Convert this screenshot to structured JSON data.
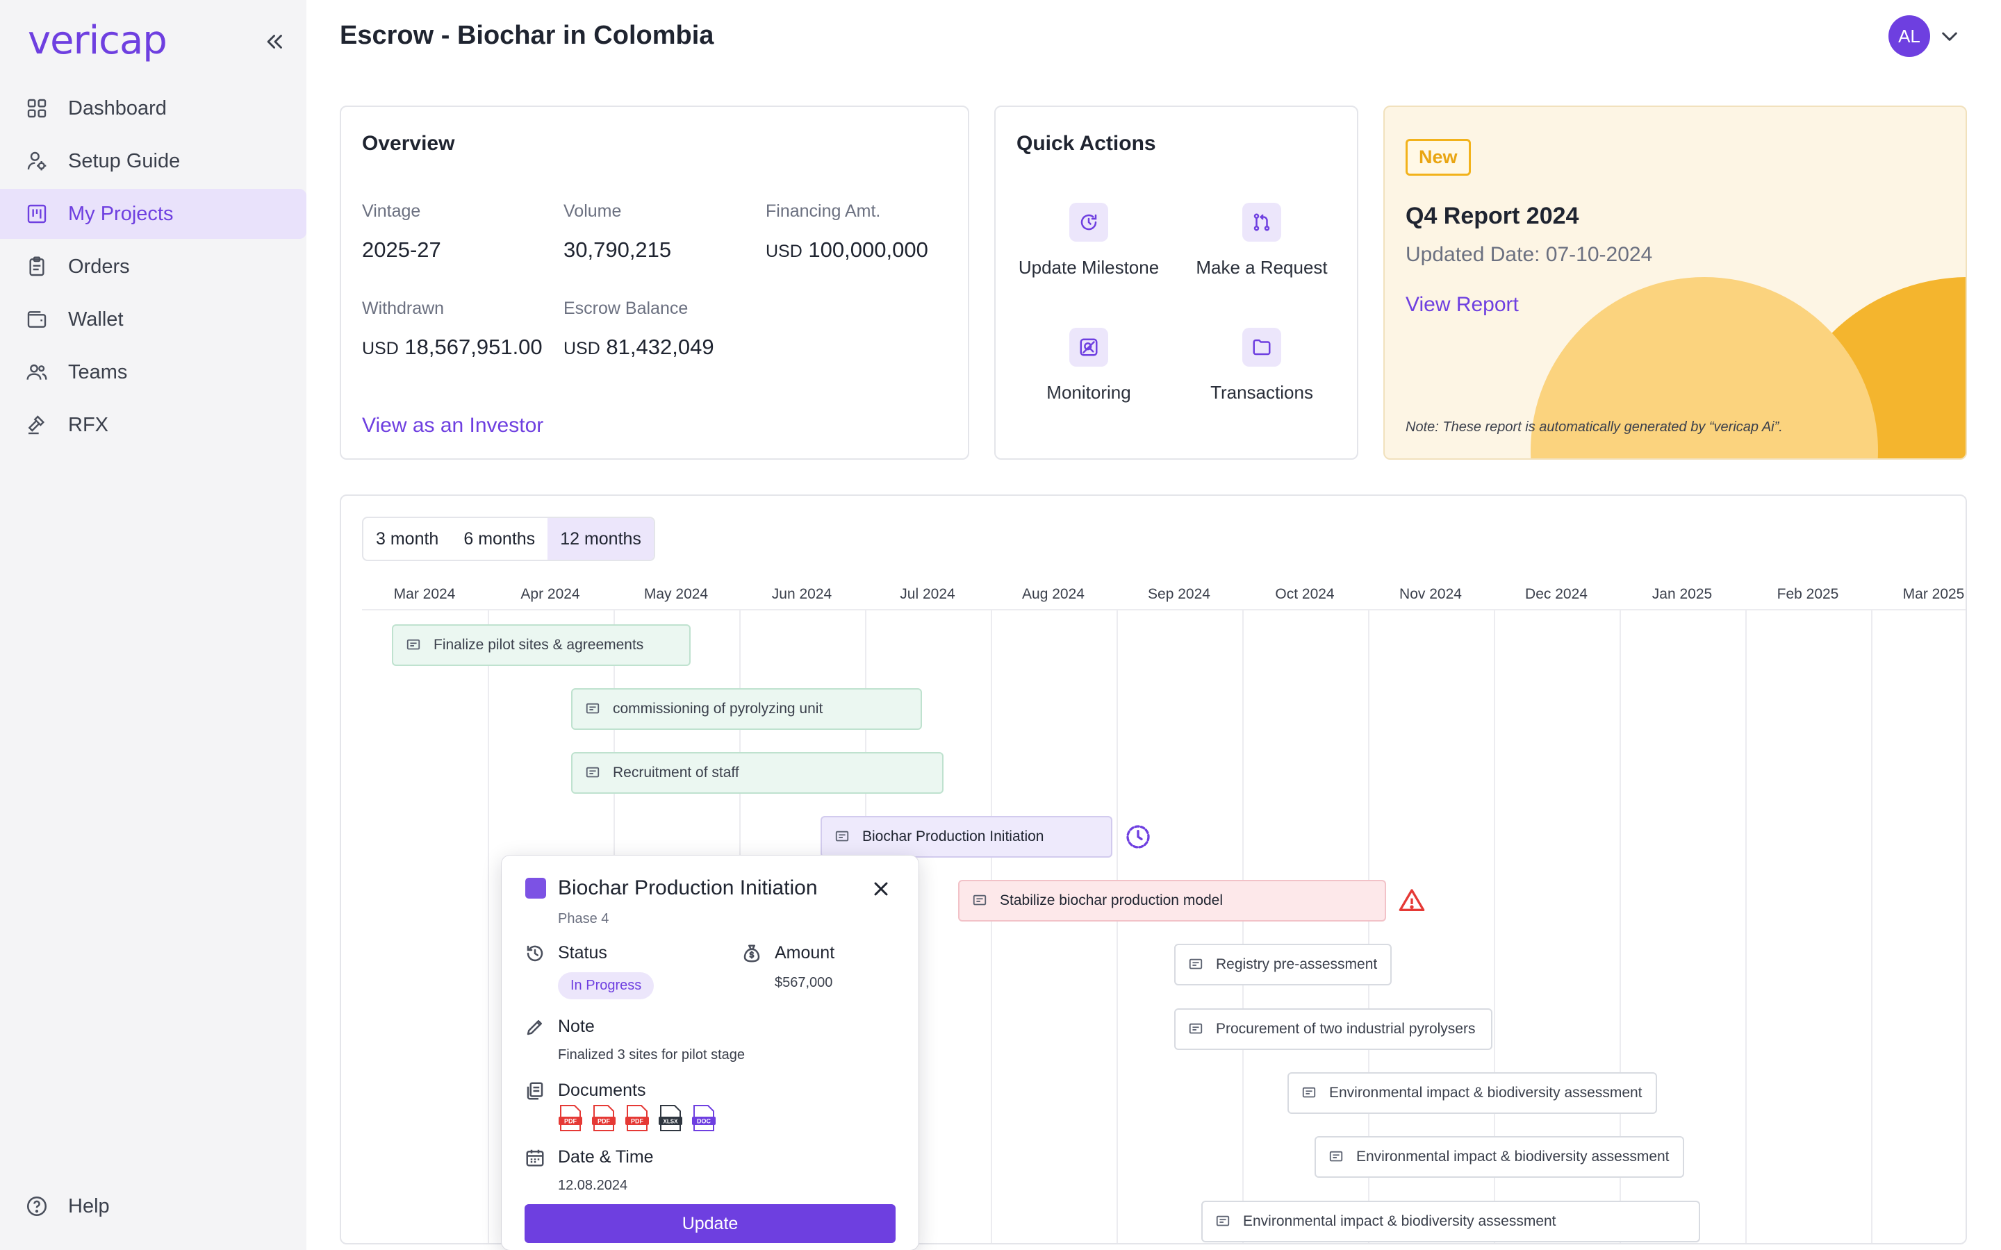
{
  "app": {
    "logo": "vericap"
  },
  "sidebar": {
    "items": [
      {
        "label": "Dashboard",
        "icon": "dashboard-icon"
      },
      {
        "label": "Setup Guide",
        "icon": "setup-guide-icon"
      },
      {
        "label": "My Projects",
        "icon": "projects-icon",
        "active": true
      },
      {
        "label": "Orders",
        "icon": "orders-icon"
      },
      {
        "label": "Wallet",
        "icon": "wallet-icon"
      },
      {
        "label": "Teams",
        "icon": "teams-icon"
      },
      {
        "label": "RFX",
        "icon": "gavel-icon"
      }
    ],
    "help_label": "Help"
  },
  "header": {
    "title": "Escrow - Biochar in Colombia",
    "avatar_initials": "AL"
  },
  "overview": {
    "title": "Overview",
    "vintage_label": "Vintage",
    "vintage_value": "2025-27",
    "volume_label": "Volume",
    "volume_value": "30,790,215",
    "financing_label": "Financing Amt.",
    "financing_currency": "USD",
    "financing_value": "100,000,000",
    "withdrawn_label": "Withdrawn",
    "withdrawn_currency": "USD",
    "withdrawn_value": "18,567,951.00",
    "escrow_label": "Escrow Balance",
    "escrow_currency": "USD",
    "escrow_value": "81,432,049",
    "investor_link": "View as an Investor"
  },
  "quick_actions": {
    "title": "Quick Actions",
    "items": [
      {
        "label": "Update Milestone",
        "icon": "milestone-icon"
      },
      {
        "label": "Make a Request",
        "icon": "request-icon"
      },
      {
        "label": "Monitoring",
        "icon": "monitoring-icon"
      },
      {
        "label": "Transactions",
        "icon": "folder-icon"
      }
    ]
  },
  "report": {
    "badge": "New",
    "title": "Q4 Report 2024",
    "updated": "Updated Date: 07-10-2024",
    "link": "View Report",
    "note": "Note: These report is automatically generated by “vericap Ai”."
  },
  "timeline": {
    "ranges": [
      "3 month",
      "6 months",
      "12 months"
    ],
    "active_range": "12 months",
    "months": [
      "Mar 2024",
      "Apr 2024",
      "May 2024",
      "Jun 2024",
      "Jul 2024",
      "Aug 2024",
      "Sep 2024",
      "Oct 2024",
      "Nov 2024",
      "Dec 2024",
      "Jan 2025",
      "Feb 2025",
      "Mar 2025"
    ],
    "tasks": [
      {
        "label": "Finalize pilot sites & agreements",
        "style": "green"
      },
      {
        "label": "commissioning of pyrolyzing unit",
        "style": "green"
      },
      {
        "label": "Recruitment of staff",
        "style": "green"
      },
      {
        "label": "Biochar Production Initiation",
        "style": "purple",
        "status_icon": "clock-icon"
      },
      {
        "label": "Stabilize biochar production model",
        "style": "red",
        "status_icon": "warning-icon"
      },
      {
        "label": "Registry pre-assessment",
        "style": "plain"
      },
      {
        "label": "Procurement of two industrial pyrolysers",
        "style": "plain"
      },
      {
        "label": "Environmental impact & biodiversity assessment",
        "style": "plain"
      },
      {
        "label": "Environmental impact & biodiversity assessment",
        "style": "plain"
      },
      {
        "label": "Environmental impact & biodiversity assessment",
        "style": "plain"
      }
    ]
  },
  "popup": {
    "title": "Biochar Production Initiation",
    "phase": "Phase 4",
    "status_label": "Status",
    "status_value": "In Progress",
    "amount_label": "Amount",
    "amount_value": "$567,000",
    "note_label": "Note",
    "note_value": "Finalized 3 sites for pilot stage",
    "documents_label": "Documents",
    "documents": [
      {
        "type": "PDF",
        "color": "#e53935"
      },
      {
        "type": "PDF",
        "color": "#e53935"
      },
      {
        "type": "PDF",
        "color": "#e53935"
      },
      {
        "type": "XLSX",
        "color": "#2f3640"
      },
      {
        "type": "DOC",
        "color": "#6e3fe0"
      }
    ],
    "datetime_label": "Date & Time",
    "datetime_value": "12.08.2024",
    "update_button": "Update"
  },
  "colors": {
    "accent": "#6e3fe0",
    "report_bg": "#fdf5e4",
    "badge": "#f2b21b"
  }
}
